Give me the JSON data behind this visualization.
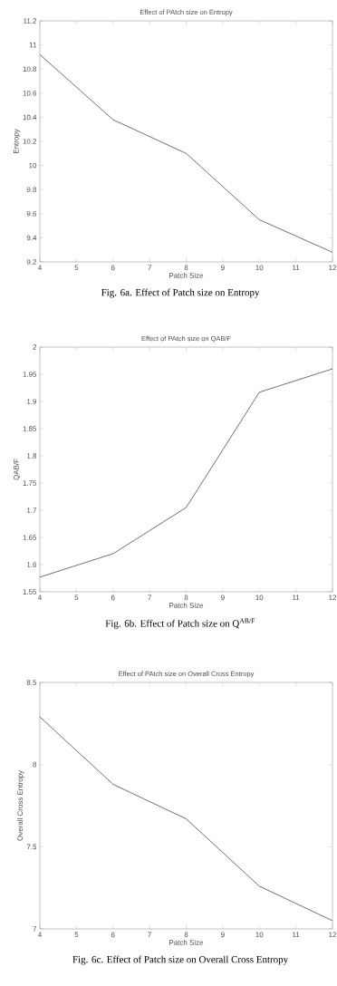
{
  "chart_data": [
    {
      "type": "line",
      "title": "Effect of PAtch size on Entropy",
      "xlabel": "Patch Size",
      "ylabel": "Entropy",
      "x": [
        4,
        6,
        8,
        10,
        12
      ],
      "values": [
        10.92,
        10.38,
        10.1,
        9.55,
        9.28
      ],
      "color": "#333333",
      "xlim": [
        4,
        12
      ],
      "ylim": [
        9.2,
        11.2
      ],
      "xticks": [
        4,
        5,
        6,
        7,
        8,
        9,
        10,
        11,
        12
      ],
      "yticks": [
        9.2,
        9.4,
        9.6,
        9.8,
        10,
        10.2,
        10.4,
        10.6,
        10.8,
        11,
        11.2
      ],
      "annotations": [
        "Fig. 6a. Effect of Patch size on Entropy"
      ]
    },
    {
      "type": "line",
      "title": "Effect of PAtch size on QAB/F",
      "xlabel": "Patch Size",
      "ylabel": "QAB/F",
      "x": [
        4,
        6,
        8,
        10,
        12
      ],
      "values": [
        1.577,
        1.62,
        1.705,
        1.917,
        1.96
      ],
      "color": "#333333",
      "xlim": [
        4,
        12
      ],
      "ylim": [
        1.55,
        2
      ],
      "xticks": [
        4,
        5,
        6,
        7,
        8,
        9,
        10,
        11,
        12
      ],
      "yticks": [
        1.55,
        1.6,
        1.65,
        1.7,
        1.75,
        1.8,
        1.85,
        1.9,
        1.95,
        2
      ],
      "annotations": [
        "Fig. 6b. Effect of Patch size on Q$^{AB/F}$"
      ]
    },
    {
      "type": "line",
      "title": "Effect of PAtch size on Overall Cross Entropy",
      "xlabel": "Patch Size",
      "ylabel": "Overall Cross Entropy",
      "x": [
        4,
        6,
        8,
        10,
        12
      ],
      "values": [
        8.29,
        7.88,
        7.67,
        7.26,
        7.05
      ],
      "color": "#333333",
      "xlim": [
        4,
        12
      ],
      "ylim": [
        7,
        8.5
      ],
      "xticks": [
        4,
        5,
        6,
        7,
        8,
        9,
        10,
        11,
        12
      ],
      "yticks": [
        7,
        7.5,
        8,
        8.5
      ],
      "annotations": [
        "Fig. 6c. Effect of Patch size on Overall Cross Entropy"
      ]
    }
  ]
}
